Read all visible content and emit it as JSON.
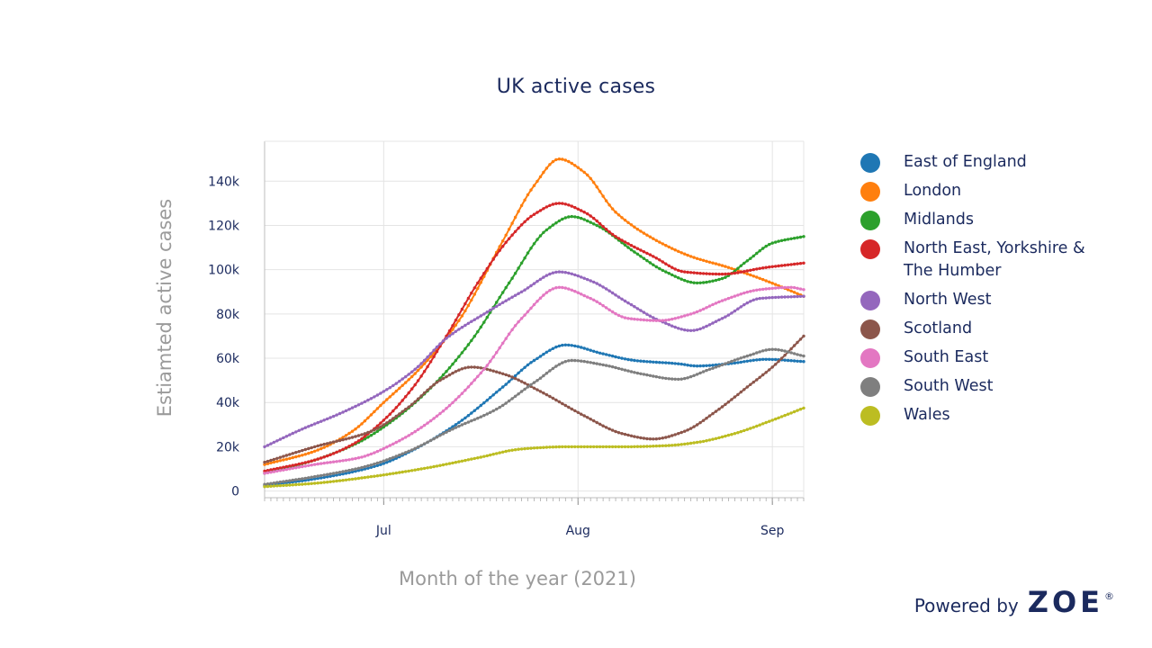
{
  "chart_data": {
    "type": "line",
    "title": "UK active cases",
    "xlabel": "Month of the year (2021)",
    "ylabel": "Estiamted active cases",
    "x_start": "2021-06-12",
    "x_end": "2021-09-06",
    "x_ticks": [
      {
        "label": "Jul",
        "date": "2021-07-01"
      },
      {
        "label": "Aug",
        "date": "2021-08-01"
      },
      {
        "label": "Sep",
        "date": "2021-09-01"
      }
    ],
    "y_ticks": [
      {
        "label": "0",
        "value": 0
      },
      {
        "label": "20k",
        "value": 20000
      },
      {
        "label": "40k",
        "value": 40000
      },
      {
        "label": "60k",
        "value": 60000
      },
      {
        "label": "80k",
        "value": 80000
      },
      {
        "label": "100k",
        "value": 100000
      },
      {
        "label": "120k",
        "value": 120000
      },
      {
        "label": "140k",
        "value": 140000
      }
    ],
    "ylim": [
      -3000,
      158000
    ],
    "grid": true,
    "legend_position": "right",
    "series": [
      {
        "name": "East of England",
        "color": "#1f77b4",
        "points": [
          [
            "2021-06-12",
            2500
          ],
          [
            "2021-06-20",
            5500
          ],
          [
            "2021-06-30",
            11500
          ],
          [
            "2021-07-06",
            19000
          ],
          [
            "2021-07-13",
            31000
          ],
          [
            "2021-07-20",
            47000
          ],
          [
            "2021-07-25",
            59000
          ],
          [
            "2021-07-30",
            66000
          ],
          [
            "2021-08-05",
            62000
          ],
          [
            "2021-08-10",
            59000
          ],
          [
            "2021-08-17",
            57500
          ],
          [
            "2021-08-20",
            56500
          ],
          [
            "2021-08-25",
            57500
          ],
          [
            "2021-08-31",
            59500
          ],
          [
            "2021-09-06",
            58500
          ]
        ]
      },
      {
        "name": "London",
        "color": "#ff7f0e",
        "points": [
          [
            "2021-06-12",
            12000
          ],
          [
            "2021-06-20",
            18000
          ],
          [
            "2021-06-26",
            27000
          ],
          [
            "2021-07-01",
            40000
          ],
          [
            "2021-07-07",
            56000
          ],
          [
            "2021-07-13",
            77000
          ],
          [
            "2021-07-20",
            113000
          ],
          [
            "2021-07-25",
            138000
          ],
          [
            "2021-07-29",
            150000
          ],
          [
            "2021-08-02",
            144000
          ],
          [
            "2021-08-07",
            126000
          ],
          [
            "2021-08-13",
            114000
          ],
          [
            "2021-08-19",
            106000
          ],
          [
            "2021-08-25",
            101000
          ],
          [
            "2021-08-31",
            95000
          ],
          [
            "2021-09-06",
            88000
          ]
        ]
      },
      {
        "name": "Midlands",
        "color": "#2ca02c",
        "points": [
          [
            "2021-06-12",
            8000
          ],
          [
            "2021-06-20",
            14000
          ],
          [
            "2021-06-27",
            22000
          ],
          [
            "2021-07-03",
            33000
          ],
          [
            "2021-07-09",
            48000
          ],
          [
            "2021-07-15",
            68000
          ],
          [
            "2021-07-21",
            94000
          ],
          [
            "2021-07-27",
            118000
          ],
          [
            "2021-07-31",
            124000
          ],
          [
            "2021-08-04",
            120000
          ],
          [
            "2021-08-10",
            108000
          ],
          [
            "2021-08-15",
            99000
          ],
          [
            "2021-08-20",
            94000
          ],
          [
            "2021-08-24",
            96000
          ],
          [
            "2021-08-28",
            104000
          ],
          [
            "2021-09-01",
            112000
          ],
          [
            "2021-09-06",
            115000
          ]
        ]
      },
      {
        "name": "North East, Yorkshire & The Humber",
        "color": "#d62728",
        "points": [
          [
            "2021-06-12",
            9000
          ],
          [
            "2021-06-20",
            14000
          ],
          [
            "2021-06-26",
            21000
          ],
          [
            "2021-07-01",
            32000
          ],
          [
            "2021-07-06",
            48000
          ],
          [
            "2021-07-11",
            70000
          ],
          [
            "2021-07-16",
            94000
          ],
          [
            "2021-07-21",
            114000
          ],
          [
            "2021-07-25",
            125000
          ],
          [
            "2021-07-29",
            130000
          ],
          [
            "2021-08-02",
            126000
          ],
          [
            "2021-08-07",
            115000
          ],
          [
            "2021-08-13",
            106000
          ],
          [
            "2021-08-18",
            99000
          ],
          [
            "2021-08-24",
            98000
          ],
          [
            "2021-08-31",
            101000
          ],
          [
            "2021-09-06",
            103000
          ]
        ]
      },
      {
        "name": "North West",
        "color": "#9467bd",
        "points": [
          [
            "2021-06-12",
            20000
          ],
          [
            "2021-06-18",
            28000
          ],
          [
            "2021-06-24",
            35000
          ],
          [
            "2021-07-01",
            45000
          ],
          [
            "2021-07-06",
            55000
          ],
          [
            "2021-07-11",
            69000
          ],
          [
            "2021-07-17",
            80000
          ],
          [
            "2021-07-23",
            90000
          ],
          [
            "2021-07-29",
            99000
          ],
          [
            "2021-08-03",
            95000
          ],
          [
            "2021-08-09",
            85000
          ],
          [
            "2021-08-14",
            77000
          ],
          [
            "2021-08-19",
            72500
          ],
          [
            "2021-08-24",
            78000
          ],
          [
            "2021-08-30",
            87000
          ],
          [
            "2021-09-06",
            88000
          ]
        ]
      },
      {
        "name": "Scotland",
        "color": "#8c564b",
        "points": [
          [
            "2021-06-12",
            13000
          ],
          [
            "2021-06-20",
            20000
          ],
          [
            "2021-06-29",
            27000
          ],
          [
            "2021-07-05",
            38000
          ],
          [
            "2021-07-10",
            50000
          ],
          [
            "2021-07-15",
            56000
          ],
          [
            "2021-07-20",
            53000
          ],
          [
            "2021-07-26",
            45000
          ],
          [
            "2021-08-02",
            34000
          ],
          [
            "2021-08-08",
            26000
          ],
          [
            "2021-08-13",
            23500
          ],
          [
            "2021-08-18",
            27000
          ],
          [
            "2021-08-23",
            36000
          ],
          [
            "2021-08-28",
            47000
          ],
          [
            "2021-09-01",
            56000
          ],
          [
            "2021-09-06",
            70000
          ]
        ]
      },
      {
        "name": "South East",
        "color": "#e377c2",
        "points": [
          [
            "2021-06-12",
            8000
          ],
          [
            "2021-06-20",
            12000
          ],
          [
            "2021-06-27",
            15000
          ],
          [
            "2021-07-03",
            22000
          ],
          [
            "2021-07-10",
            35000
          ],
          [
            "2021-07-17",
            55000
          ],
          [
            "2021-07-23",
            78000
          ],
          [
            "2021-07-29",
            92000
          ],
          [
            "2021-08-03",
            87000
          ],
          [
            "2021-08-09",
            78000
          ],
          [
            "2021-08-14",
            77000
          ],
          [
            "2021-08-19",
            80000
          ],
          [
            "2021-08-24",
            86000
          ],
          [
            "2021-08-30",
            91000
          ],
          [
            "2021-09-04",
            92000
          ],
          [
            "2021-09-06",
            91000
          ]
        ]
      },
      {
        "name": "South West",
        "color": "#7f7f7f",
        "points": [
          [
            "2021-06-12",
            3000
          ],
          [
            "2021-06-20",
            6500
          ],
          [
            "2021-06-28",
            11000
          ],
          [
            "2021-07-05",
            18000
          ],
          [
            "2021-07-12",
            28000
          ],
          [
            "2021-07-19",
            37000
          ],
          [
            "2021-07-25",
            49000
          ],
          [
            "2021-07-31",
            59000
          ],
          [
            "2021-08-05",
            57000
          ],
          [
            "2021-08-11",
            53000
          ],
          [
            "2021-08-17",
            50500
          ],
          [
            "2021-08-22",
            55000
          ],
          [
            "2021-08-28",
            61000
          ],
          [
            "2021-09-01",
            64000
          ],
          [
            "2021-09-06",
            61000
          ]
        ]
      },
      {
        "name": "Wales",
        "color": "#bcbd22",
        "points": [
          [
            "2021-06-12",
            2000
          ],
          [
            "2021-06-20",
            3500
          ],
          [
            "2021-06-29",
            6500
          ],
          [
            "2021-07-08",
            10500
          ],
          [
            "2021-07-16",
            15000
          ],
          [
            "2021-07-23",
            19000
          ],
          [
            "2021-07-30",
            20000
          ],
          [
            "2021-08-08",
            20000
          ],
          [
            "2021-08-15",
            20500
          ],
          [
            "2021-08-20",
            22000
          ],
          [
            "2021-08-26",
            26000
          ],
          [
            "2021-09-01",
            32000
          ],
          [
            "2021-09-06",
            37500
          ]
        ]
      }
    ]
  },
  "branding": {
    "powered_by": "Powered by",
    "brand": "ZOE",
    "registered": "®"
  }
}
